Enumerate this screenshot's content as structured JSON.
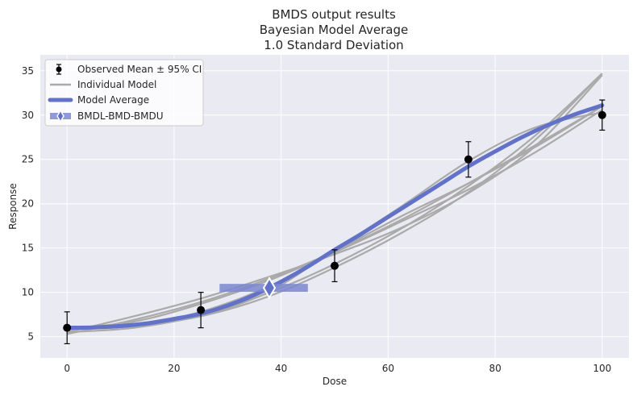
{
  "chart_data": {
    "type": "line",
    "title_lines": [
      "BMDS output results",
      "Bayesian Model Average",
      "1.0 Standard Deviation"
    ],
    "xlabel": "Dose",
    "ylabel": "Response",
    "xlim": [
      -5,
      105
    ],
    "ylim": [
      2.6,
      36.8
    ],
    "x_ticks": [
      0,
      20,
      40,
      60,
      80,
      100
    ],
    "y_ticks": [
      5,
      10,
      15,
      20,
      25,
      30,
      35
    ],
    "grid": true,
    "legend_position": "upper-left",
    "legend": [
      "Observed Mean ± 95% CI",
      "Individual Model",
      "Model Average",
      "BMDL-BMD-BMDU"
    ],
    "observed": {
      "name": "Observed Mean ± 95% CI",
      "x": [
        0,
        25,
        50,
        75,
        100
      ],
      "y": [
        6.0,
        8.0,
        13.0,
        25.0,
        30.0
      ],
      "ci_low": [
        4.2,
        6.0,
        11.2,
        23.0,
        28.3
      ],
      "ci_high": [
        7.8,
        10.0,
        14.8,
        27.0,
        31.7
      ]
    },
    "individual_models": [
      {
        "x": [
          0,
          12.5,
          25,
          37.5,
          50,
          62.5,
          75,
          87.5,
          100
        ],
        "y": [
          5.5,
          6.0,
          7.4,
          9.9,
          13.2,
          17.2,
          22.0,
          27.7,
          34.7
        ]
      },
      {
        "x": [
          0,
          12.5,
          25,
          37.5,
          50,
          62.5,
          75,
          87.5,
          100
        ],
        "y": [
          5.8,
          6.2,
          7.8,
          10.6,
          14.6,
          18.6,
          22.3,
          26.4,
          31.0
        ]
      },
      {
        "x": [
          0,
          12.5,
          25,
          37.5,
          50,
          62.5,
          75,
          87.5,
          100
        ],
        "y": [
          6.0,
          6.2,
          7.4,
          10.0,
          14.8,
          19.7,
          24.8,
          28.6,
          30.3
        ]
      },
      {
        "x": [
          0,
          12.5,
          25,
          37.5,
          50,
          62.5,
          75,
          87.5,
          100
        ],
        "y": [
          5.5,
          7.3,
          9.3,
          11.7,
          14.3,
          17.3,
          21.2,
          26.5,
          34.5
        ]
      },
      {
        "x": [
          0,
          12.5,
          25,
          37.5,
          50,
          62.5,
          75,
          87.5,
          100
        ],
        "y": [
          5.3,
          6.9,
          8.9,
          11.5,
          14.6,
          18.2,
          22.3,
          26.6,
          31.0
        ]
      },
      {
        "x": [
          0,
          12.5,
          25,
          37.5,
          50,
          62.5,
          75,
          87.5,
          100
        ],
        "y": [
          5.9,
          6.7,
          8.7,
          11.3,
          14.5,
          18.0,
          21.6,
          25.8,
          30.6
        ]
      },
      {
        "x": [
          0,
          12.5,
          25,
          37.5,
          50,
          62.5,
          75,
          87.5,
          100
        ],
        "y": [
          6.0,
          6.2,
          7.3,
          9.5,
          12.8,
          16.7,
          21.3,
          27.2,
          34.7
        ]
      }
    ],
    "model_average": {
      "name": "Model Average",
      "x": [
        0,
        5,
        10,
        15,
        20,
        25,
        30,
        35,
        40,
        45,
        50,
        55,
        60,
        65,
        70,
        75,
        80,
        85,
        90,
        95,
        100
      ],
      "y": [
        6.0,
        6.05,
        6.2,
        6.5,
        7.0,
        7.6,
        8.5,
        9.7,
        11.2,
        12.9,
        14.8,
        16.6,
        18.5,
        20.4,
        22.3,
        24.2,
        25.9,
        27.5,
        28.9,
        30.1,
        31.1
      ]
    },
    "bmd_interval": {
      "name": "BMDL-BMD-BMDU",
      "bmdl": 28.5,
      "bmd": 37.8,
      "bmdu": 45.0,
      "y": 10.5
    },
    "colors": {
      "axes_bg": "#eaeaf2",
      "grid": "#ffffff",
      "individual": "#aaaaaa",
      "average": "#6272c8",
      "interval": "#7b87d0",
      "observed": "#000000",
      "text": "#262626"
    }
  }
}
